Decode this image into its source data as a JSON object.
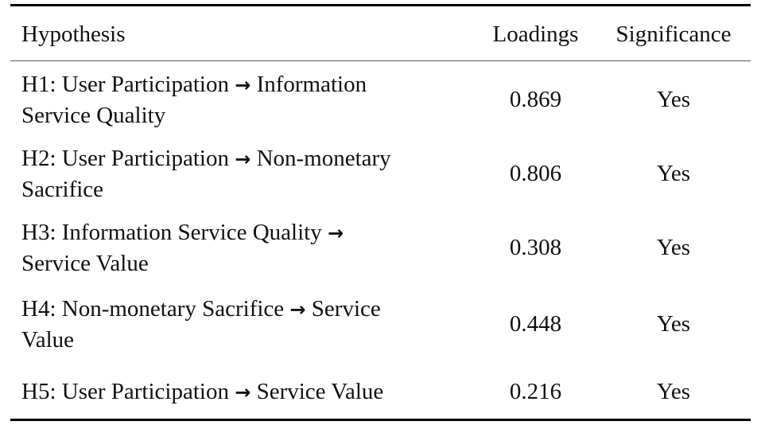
{
  "table": {
    "headers": {
      "hypothesis": "Hypothesis",
      "loadings": "Loadings",
      "significance": "Significance"
    },
    "arrow_glyph": "→",
    "rows": [
      {
        "hypothesis_line1_a": "H1: User Participation ",
        "hypothesis_line1_b": " Information",
        "hypothesis_line2": "Service Quality",
        "loading": "0.869",
        "significance": "Yes"
      },
      {
        "hypothesis_line1_a": "H2: User Participation ",
        "hypothesis_line1_b": " Non-monetary",
        "hypothesis_line2": "Sacrifice",
        "loading": "0.806",
        "significance": "Yes"
      },
      {
        "hypothesis_line1_a": "H3: Information Service Quality ",
        "hypothesis_line1_b": "",
        "hypothesis_line2": "Service Value",
        "loading": "0.308",
        "significance": "Yes"
      },
      {
        "hypothesis_line1_a": "H4: Non-monetary Sacrifice ",
        "hypothesis_line1_b": " Service",
        "hypothesis_line2": "Value",
        "loading": "0.448",
        "significance": "Yes"
      },
      {
        "hypothesis_line1_a": "H5: User Participation ",
        "hypothesis_line1_b": " Service Value",
        "hypothesis_line2": "",
        "loading": "0.216",
        "significance": "Yes"
      }
    ]
  }
}
